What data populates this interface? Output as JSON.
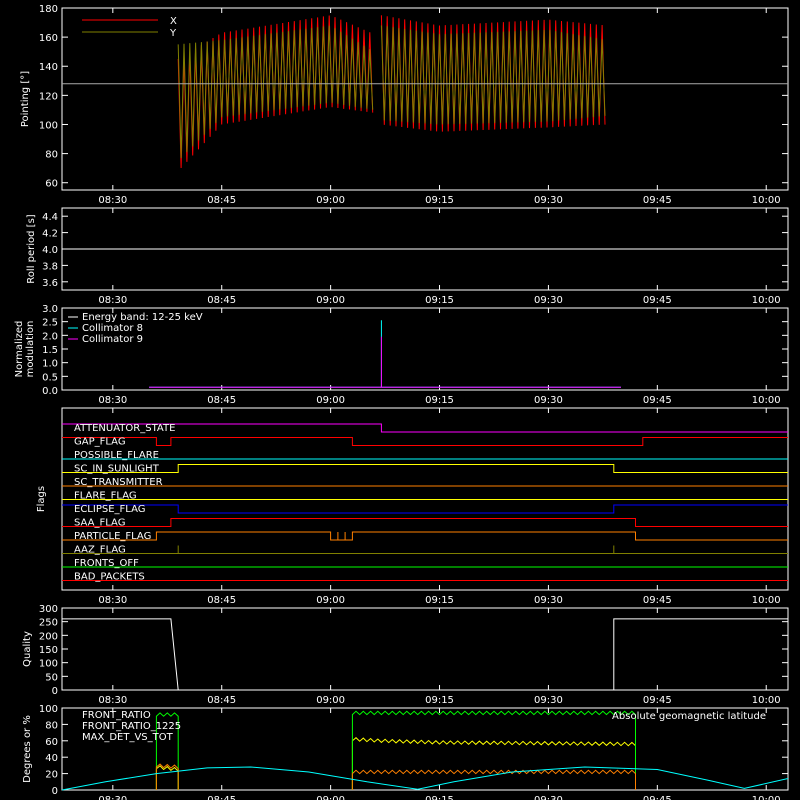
{
  "time_ticks": [
    "08:30",
    "08:45",
    "09:00",
    "09:15",
    "09:30",
    "09:45",
    "10:00"
  ],
  "chart_data": [
    {
      "type": "line",
      "ylabel": "Pointing [°]",
      "ylim": [
        55,
        180
      ],
      "yticks": [
        60,
        80,
        100,
        120,
        140,
        160,
        180
      ],
      "reference_line": 128,
      "legend": [
        {
          "name": "X",
          "color": "#ff0000"
        },
        {
          "name": "Y",
          "color": "#808000"
        }
      ],
      "series": [
        {
          "name": "X",
          "color": "#ff0000",
          "segments": [
            {
              "t": [
                "08:39",
                "08:45",
                "09:00",
                "09:06"
              ],
              "max": [
                145,
                163,
                175,
                162
              ],
              "min": [
                68,
                100,
                112,
                108
              ]
            },
            {
              "t": [
                "09:07",
                "09:15",
                "09:30",
                "09:38"
              ],
              "max": [
                175,
                168,
                172,
                168
              ],
              "min": [
                100,
                95,
                98,
                100
              ]
            }
          ]
        },
        {
          "name": "Y",
          "color": "#808000",
          "segments": [
            {
              "t": [
                "08:39",
                "08:45",
                "09:00",
                "09:06"
              ],
              "max": [
                155,
                158,
                168,
                150
              ],
              "min": [
                75,
                105,
                115,
                110
              ]
            },
            {
              "t": [
                "09:07",
                "09:15",
                "09:30",
                "09:38"
              ],
              "max": [
                168,
                162,
                165,
                158
              ],
              "min": [
                103,
                100,
                102,
                106
              ]
            }
          ]
        }
      ]
    },
    {
      "type": "line",
      "ylabel": "Roll period [s]",
      "ylim": [
        3.5,
        4.5
      ],
      "yticks": [
        3.6,
        3.8,
        4.0,
        4.2,
        4.4
      ],
      "series": [
        {
          "name": "",
          "color": "#ffffff",
          "x": [
            "08:23",
            "10:03"
          ],
          "y": [
            4.0,
            4.0
          ]
        }
      ]
    },
    {
      "type": "line",
      "ylabel": "Normalized modulation",
      "ylim": [
        0,
        3.0
      ],
      "yticks": [
        0.0,
        0.5,
        1.0,
        1.5,
        2.0,
        2.5,
        3.0
      ],
      "legend": [
        {
          "name": "Energy band: 12-25 keV",
          "color": "#ffffff"
        },
        {
          "name": "Collimator 8",
          "color": "#00ffff"
        },
        {
          "name": "Collimator 9",
          "color": "#ff00ff"
        }
      ],
      "series": [
        {
          "name": "Collimator 8",
          "color": "#00ffff",
          "x": [
            "08:35",
            "08:37",
            "09:03",
            "09:07",
            "09:07",
            "09:07",
            "09:40"
          ],
          "y": [
            0.1,
            0.1,
            0.1,
            0.1,
            2.55,
            0.1,
            0.1
          ]
        },
        {
          "name": "Collimator 9",
          "color": "#ff00ff",
          "x": [
            "08:35",
            "08:37",
            "09:03",
            "09:07",
            "09:07",
            "09:07",
            "09:40"
          ],
          "y": [
            0.1,
            0.1,
            0.1,
            0.1,
            1.95,
            0.1,
            0.1
          ]
        }
      ]
    },
    {
      "type": "line",
      "ylabel": "Flags",
      "flags": [
        {
          "name": "ATTENUATOR_STATE",
          "color": "#ff00ff",
          "steps": [
            [
              "08:23",
              1
            ],
            [
              "09:07",
              0
            ]
          ]
        },
        {
          "name": "GAP_FLAG",
          "color": "#ff0000",
          "steps": [
            [
              "08:23",
              1
            ],
            [
              "08:36",
              0
            ],
            [
              "08:38",
              1
            ],
            [
              "09:03",
              0
            ],
            [
              "09:43",
              1
            ]
          ]
        },
        {
          "name": "POSSIBLE_FLARE",
          "color": "#00ffff",
          "steps": [
            [
              "08:23",
              0
            ]
          ]
        },
        {
          "name": "SC_IN_SUNLIGHT",
          "color": "#ffff00",
          "steps": [
            [
              "08:23",
              0
            ],
            [
              "08:39",
              1
            ],
            [
              "09:39",
              0
            ]
          ]
        },
        {
          "name": "SC_TRANSMITTER",
          "color": "#ff8000",
          "steps": [
            [
              "08:23",
              0
            ]
          ]
        },
        {
          "name": "FLARE_FLAG",
          "color": "#ffff00",
          "steps": [
            [
              "08:23",
              0
            ]
          ]
        },
        {
          "name": "ECLIPSE_FLAG",
          "color": "#0000ff",
          "steps": [
            [
              "08:23",
              1
            ],
            [
              "08:39",
              0
            ],
            [
              "09:39",
              1
            ]
          ]
        },
        {
          "name": "SAA_FLAG",
          "color": "#ff0000",
          "steps": [
            [
              "08:23",
              0
            ],
            [
              "08:38",
              1
            ],
            [
              "09:42",
              0
            ]
          ]
        },
        {
          "name": "PARTICLE_FLAG",
          "color": "#ff8000",
          "steps": [
            [
              "08:23",
              0
            ],
            [
              "08:36",
              1
            ],
            [
              "09:00",
              0
            ],
            [
              "09:01",
              1
            ],
            [
              "09:01",
              0
            ],
            [
              "09:02",
              1
            ],
            [
              "09:02",
              0
            ],
            [
              "09:03",
              1
            ],
            [
              "09:42",
              0
            ]
          ]
        },
        {
          "name": "AAZ_FLAG",
          "color": "#808000",
          "steps": [
            [
              "08:23",
              0
            ],
            [
              "08:39",
              1
            ],
            [
              "08:39",
              0
            ],
            [
              "09:39",
              1
            ],
            [
              "09:39",
              0
            ]
          ]
        },
        {
          "name": "FRONTS_OFF",
          "color": "#00ff00",
          "steps": [
            [
              "08:23",
              0
            ]
          ]
        },
        {
          "name": "BAD_PACKETS",
          "color": "#ff0000",
          "steps": [
            [
              "08:23",
              0
            ]
          ]
        }
      ]
    },
    {
      "type": "line",
      "ylabel": "Quality",
      "ylim": [
        0,
        300
      ],
      "yticks": [
        0,
        50,
        100,
        150,
        200,
        250,
        300
      ],
      "series": [
        {
          "name": "",
          "color": "#ffffff",
          "x": [
            "08:23",
            "08:38",
            "08:39",
            "09:39",
            "09:39",
            "10:03"
          ],
          "y": [
            260,
            260,
            0,
            0,
            260,
            260
          ]
        }
      ]
    },
    {
      "type": "line",
      "ylabel": "Degrees or %",
      "ylim": [
        0,
        100
      ],
      "yticks": [
        0,
        20,
        40,
        60,
        80,
        100
      ],
      "annotation": "Absolute geomagnetic latitude",
      "annotation_color": "#00ffff",
      "legend": [
        {
          "name": "FRONT_RATIO",
          "color": "#ffff00"
        },
        {
          "name": "FRONT_RATIO_1225",
          "color": "#00ff00"
        },
        {
          "name": "MAX_DET_VS_TOT",
          "color": "#ff8000"
        }
      ],
      "series": [
        {
          "name": "FRONT_RATIO",
          "color": "#ffff00",
          "segments": [
            {
              "t": [
                "08:36",
                "08:39"
              ],
              "y": [
                28,
                25
              ]
            },
            {
              "t": [
                "09:03",
                "09:07",
                "09:15",
                "09:30",
                "09:42"
              ],
              "y": [
                62,
                60,
                58,
                57,
                56
              ]
            }
          ]
        },
        {
          "name": "FRONT_RATIO_1225",
          "color": "#00ff00",
          "segments": [
            {
              "t": [
                "08:36",
                "08:39"
              ],
              "y": [
                92,
                92
              ]
            },
            {
              "t": [
                "09:03",
                "09:15",
                "09:30",
                "09:42"
              ],
              "y": [
                94,
                94,
                94,
                94
              ]
            }
          ]
        },
        {
          "name": "MAX_DET_VS_TOT",
          "color": "#ff8000",
          "segments": [
            {
              "t": [
                "08:36",
                "08:39"
              ],
              "y": [
                30,
                28
              ]
            },
            {
              "t": [
                "09:03",
                "09:15",
                "09:30",
                "09:42"
              ],
              "y": [
                22,
                22,
                22,
                22
              ]
            }
          ]
        },
        {
          "name": "Absolute geomagnetic latitude",
          "color": "#00ffff",
          "x": [
            "08:23",
            "08:29",
            "08:36",
            "08:43",
            "08:49",
            "08:57",
            "09:05",
            "09:12",
            "09:17",
            "09:25",
            "09:35",
            "09:45",
            "09:52",
            "09:57",
            "10:03"
          ],
          "y": [
            0,
            10,
            20,
            27,
            28,
            22,
            10,
            1,
            10,
            22,
            28,
            25,
            12,
            2,
            14
          ]
        }
      ]
    }
  ]
}
